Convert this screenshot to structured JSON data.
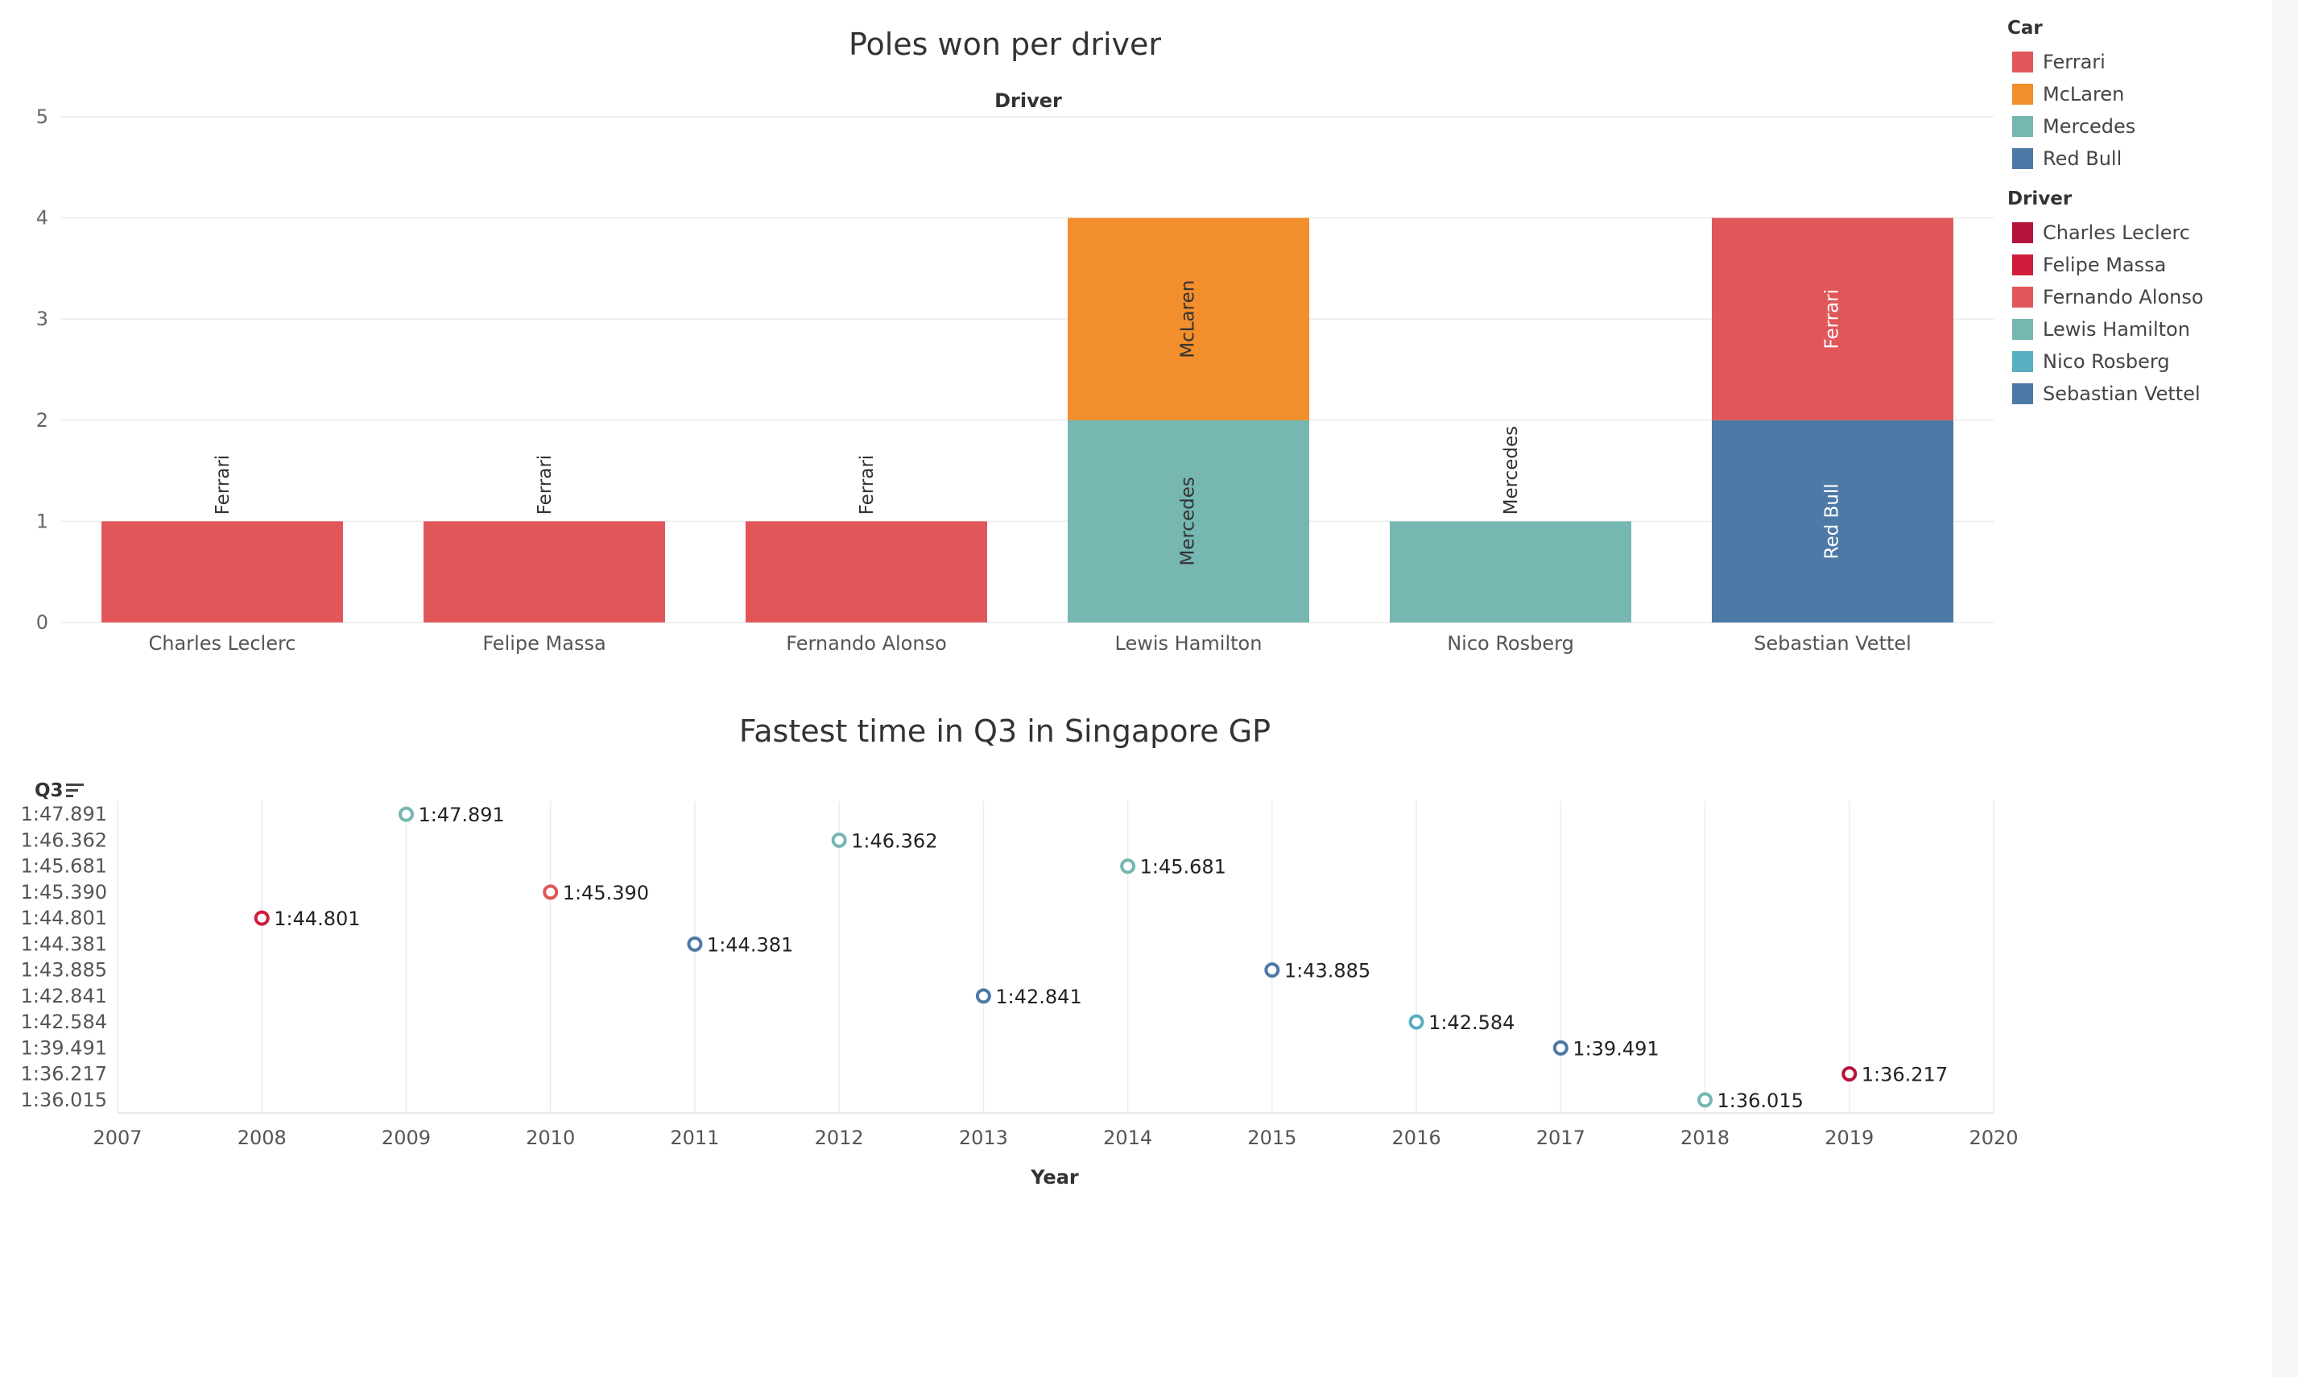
{
  "chart_data": [
    {
      "type": "bar",
      "title": "Poles won per driver",
      "xlabel": "Driver",
      "ylabel": "",
      "ylim": [
        0,
        5
      ],
      "yticks": [
        0,
        1,
        2,
        3,
        4,
        5
      ],
      "grid": true,
      "stacked": true,
      "categories": [
        "Charles Leclerc",
        "Felipe Massa",
        "Fernando Alonso",
        "Lewis Hamilton",
        "Nico Rosberg",
        "Sebastian Vettel"
      ],
      "stacks": [
        [
          {
            "car": "Ferrari",
            "value": 1
          }
        ],
        [
          {
            "car": "Ferrari",
            "value": 1
          }
        ],
        [
          {
            "car": "Ferrari",
            "value": 1
          }
        ],
        [
          {
            "car": "Mercedes",
            "value": 2
          },
          {
            "car": "McLaren",
            "value": 2
          }
        ],
        [
          {
            "car": "Mercedes",
            "value": 1
          }
        ],
        [
          {
            "car": "Red Bull",
            "value": 2
          },
          {
            "car": "Ferrari",
            "value": 2
          }
        ]
      ]
    },
    {
      "type": "scatter",
      "title": "Fastest time in Q3 in Singapore GP",
      "xlabel": "Year",
      "ylabel": "Q3",
      "xlim": [
        2007,
        2020
      ],
      "xticks": [
        2007,
        2008,
        2009,
        2010,
        2011,
        2012,
        2013,
        2014,
        2015,
        2016,
        2017,
        2018,
        2019,
        2020
      ],
      "y_categories": [
        "1:47.891",
        "1:46.362",
        "1:45.681",
        "1:45.390",
        "1:44.801",
        "1:44.381",
        "1:43.885",
        "1:42.841",
        "1:42.584",
        "1:39.491",
        "1:36.217",
        "1:36.015"
      ],
      "grid": true,
      "points": [
        {
          "x": 2008,
          "y": "1:44.801",
          "driver": "Felipe Massa"
        },
        {
          "x": 2009,
          "y": "1:47.891",
          "driver": "Lewis Hamilton"
        },
        {
          "x": 2010,
          "y": "1:45.390",
          "driver": "Fernando Alonso"
        },
        {
          "x": 2011,
          "y": "1:44.381",
          "driver": "Sebastian Vettel"
        },
        {
          "x": 2012,
          "y": "1:46.362",
          "driver": "Lewis Hamilton"
        },
        {
          "x": 2013,
          "y": "1:42.841",
          "driver": "Sebastian Vettel"
        },
        {
          "x": 2014,
          "y": "1:45.681",
          "driver": "Lewis Hamilton"
        },
        {
          "x": 2015,
          "y": "1:43.885",
          "driver": "Sebastian Vettel"
        },
        {
          "x": 2016,
          "y": "1:42.584",
          "driver": "Nico Rosberg"
        },
        {
          "x": 2017,
          "y": "1:39.491",
          "driver": "Sebastian Vettel"
        },
        {
          "x": 2018,
          "y": "1:36.015",
          "driver": "Lewis Hamilton"
        },
        {
          "x": 2019,
          "y": "1:36.217",
          "driver": "Charles Leclerc"
        }
      ]
    }
  ],
  "legends": {
    "car": {
      "title": "Car",
      "items": [
        {
          "label": "Ferrari",
          "color": "#e15759"
        },
        {
          "label": "McLaren",
          "color": "#f28e2b"
        },
        {
          "label": "Mercedes",
          "color": "#76b7b2"
        },
        {
          "label": "Red Bull",
          "color": "#4e79a7"
        }
      ]
    },
    "driver": {
      "title": "Driver",
      "items": [
        {
          "label": "Charles Leclerc",
          "color": "#b5123a"
        },
        {
          "label": "Felipe Massa",
          "color": "#d01d3c"
        },
        {
          "label": "Fernando Alonso",
          "color": "#e15759"
        },
        {
          "label": "Lewis Hamilton",
          "color": "#76b7b2"
        },
        {
          "label": "Nico Rosberg",
          "color": "#59aebf"
        },
        {
          "label": "Sebastian Vettel",
          "color": "#4e79a7"
        }
      ]
    }
  },
  "sort_icon": "sort-descending-icon"
}
